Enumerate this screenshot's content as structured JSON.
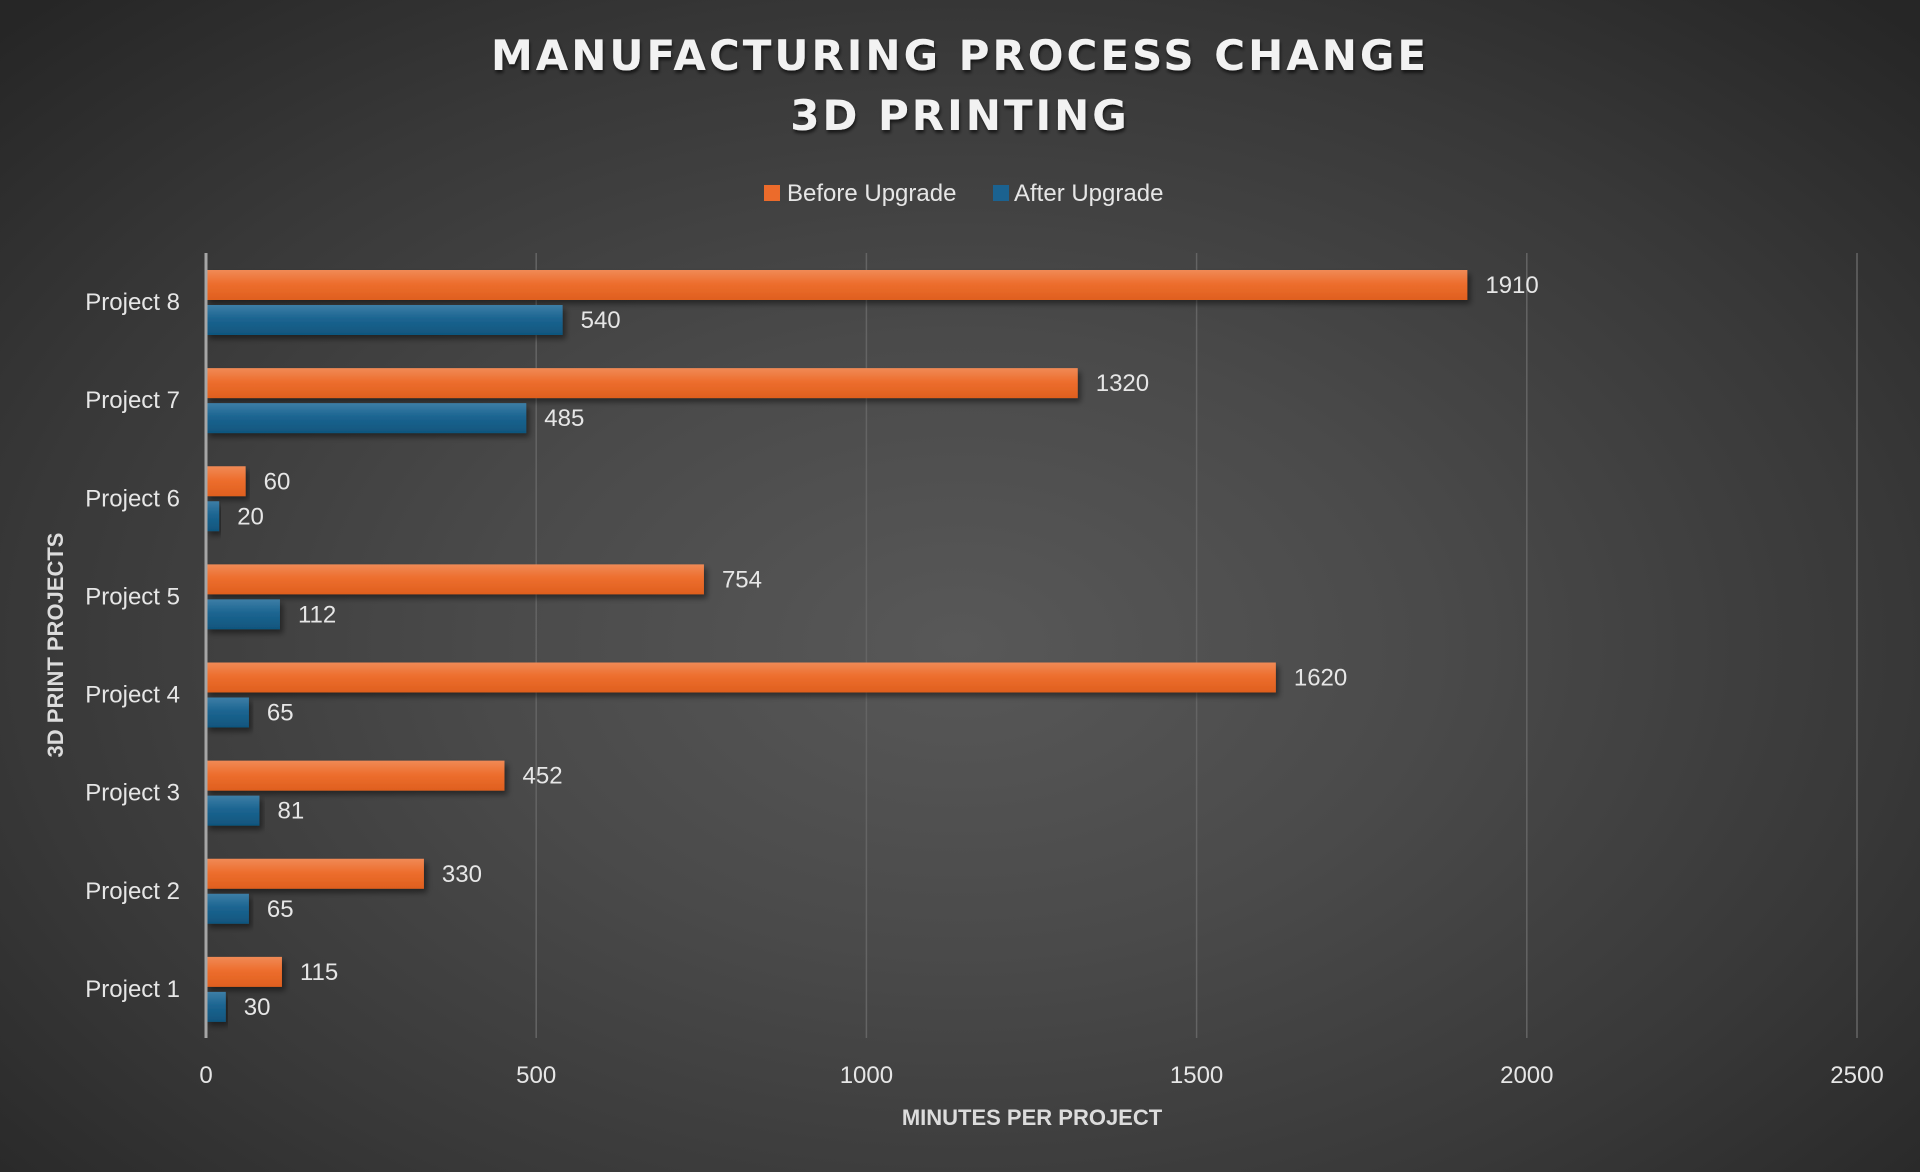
{
  "chart_data": {
    "type": "bar",
    "orientation": "horizontal",
    "title": [
      "MANUFACTURING PROCESS CHANGE",
      "3D PRINTING"
    ],
    "xlabel": "MINUTES PER PROJECT",
    "ylabel": "3D PRINT PROJECTS",
    "categories": [
      "Project 1",
      "Project 2",
      "Project 3",
      "Project 4",
      "Project 5",
      "Project 6",
      "Project 7",
      "Project 8"
    ],
    "series": [
      {
        "name": "Before Upgrade",
        "color": "#EC6B2B",
        "values": [
          115,
          330,
          452,
          1620,
          754,
          60,
          1320,
          1910
        ]
      },
      {
        "name": "After Upgrade",
        "color": "#1B6290",
        "values": [
          30,
          65,
          81,
          65,
          112,
          20,
          485,
          540
        ]
      }
    ],
    "xlim": [
      0,
      2500
    ],
    "xticks": [
      0,
      500,
      1000,
      1500,
      2000,
      2500
    ],
    "grid": true,
    "legend_position": "top",
    "data_labels": true
  }
}
